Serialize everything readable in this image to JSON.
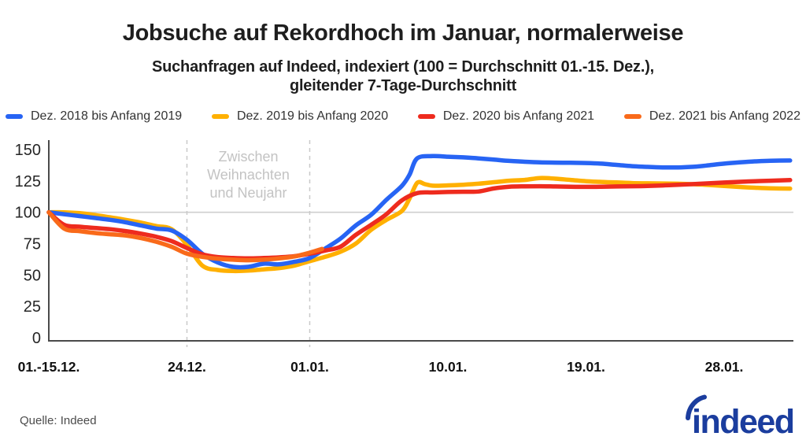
{
  "header": {
    "title": "Jobsuche auf Rekordhoch im Januar, normalerweise",
    "subtitle_line1": "Suchanfragen auf Indeed, indexiert (100 = Durchschnitt 01.-15. Dez.),",
    "subtitle_line2": "gleitender 7-Tage-Durchschnitt"
  },
  "source": {
    "text": "Quelle: Indeed"
  },
  "logo": {
    "text": "indeed",
    "color": "#1b3d9e"
  },
  "colors": {
    "blue": "#2764f4",
    "amber": "#ffb000",
    "red": "#ee2b1e",
    "orange": "#f96a1a",
    "grid": "#cfcfcf",
    "dashed": "#c9c9c9",
    "annotation": "#c3c3c3",
    "axis": "#4a4a4a",
    "tick_text": "#262626",
    "x_tick_text": "#111111"
  },
  "chart_data": {
    "type": "line",
    "title": "Jobsuche auf Rekordhoch im Januar, normalerweise",
    "subtitle": "Suchanfragen auf Indeed, indexiert (100 = Durchschnitt 01.-15. Dez.), gleitender 7-Tage-Durchschnitt",
    "xlabel": "",
    "ylabel": "",
    "legend_position": "top",
    "grid": "reference line at 100 only",
    "y_axis": {
      "ticks": [
        0,
        25,
        50,
        75,
        100,
        125,
        150
      ],
      "range": [
        0,
        157
      ]
    },
    "x_axis": {
      "unit": "days since 15. Dez.",
      "range_days": [
        0,
        48.3
      ],
      "ticks": [
        {
          "day": 0,
          "label": "01.-15.12."
        },
        {
          "day": 9,
          "label": "24.12."
        },
        {
          "day": 17,
          "label": "01.01."
        },
        {
          "day": 26,
          "label": "10.01."
        },
        {
          "day": 35,
          "label": "19.01."
        },
        {
          "day": 44,
          "label": "28.01."
        }
      ]
    },
    "reference_line": 100,
    "annotation": {
      "label_lines": [
        "Zwischen",
        "Weihnachten",
        "und Neujahr"
      ],
      "from_day": 9,
      "to_day": 17
    },
    "series": [
      {
        "name": "Dez. 2018 bis Anfang 2019",
        "color": "#2764f4",
        "z": 1,
        "points": [
          [
            0,
            100
          ],
          [
            1,
            98.5
          ],
          [
            2,
            97
          ],
          [
            3,
            95.5
          ],
          [
            4,
            94
          ],
          [
            5,
            92
          ],
          [
            6,
            89.5
          ],
          [
            7,
            87
          ],
          [
            8,
            85.5
          ],
          [
            9,
            78
          ],
          [
            10,
            67
          ],
          [
            11,
            60
          ],
          [
            12,
            56.5
          ],
          [
            13,
            56.5
          ],
          [
            14,
            59
          ],
          [
            15,
            58.5
          ],
          [
            16,
            60.5
          ],
          [
            17,
            63.5
          ],
          [
            18,
            71
          ],
          [
            19,
            79
          ],
          [
            20,
            89.5
          ],
          [
            21,
            98
          ],
          [
            22,
            110
          ],
          [
            23,
            121
          ],
          [
            23.5,
            130
          ],
          [
            24,
            143
          ],
          [
            25,
            144.8
          ],
          [
            26,
            144.3
          ],
          [
            27,
            143.8
          ],
          [
            28,
            143
          ],
          [
            29,
            142
          ],
          [
            30,
            141
          ],
          [
            31,
            140.3
          ],
          [
            32,
            139.8
          ],
          [
            33,
            139.6
          ],
          [
            34,
            139.5
          ],
          [
            35,
            139.3
          ],
          [
            36,
            138.8
          ],
          [
            37,
            137.8
          ],
          [
            38,
            136.8
          ],
          [
            39,
            136.2
          ],
          [
            40,
            135.8
          ],
          [
            41,
            135.8
          ],
          [
            42,
            136.3
          ],
          [
            43,
            137.5
          ],
          [
            44,
            138.8
          ],
          [
            45,
            139.8
          ],
          [
            46,
            140.6
          ],
          [
            47,
            141.1
          ],
          [
            48.3,
            141.3
          ]
        ]
      },
      {
        "name": "Dez. 2019 bis Anfang 2020",
        "color": "#ffb000",
        "z": 0,
        "points": [
          [
            0,
            100
          ],
          [
            1,
            100
          ],
          [
            2,
            99.3
          ],
          [
            3,
            97.8
          ],
          [
            4,
            96
          ],
          [
            5,
            94
          ],
          [
            6,
            91.8
          ],
          [
            7,
            89
          ],
          [
            8,
            86.5
          ],
          [
            9,
            74
          ],
          [
            10,
            57.5
          ],
          [
            11,
            54
          ],
          [
            12,
            53.2
          ],
          [
            13,
            53.5
          ],
          [
            14,
            54.5
          ],
          [
            15,
            55.5
          ],
          [
            16,
            57.5
          ],
          [
            17,
            61
          ],
          [
            18,
            64.5
          ],
          [
            19,
            68.5
          ],
          [
            20,
            75
          ],
          [
            21,
            86
          ],
          [
            22,
            94
          ],
          [
            23,
            101
          ],
          [
            23.5,
            111
          ],
          [
            24,
            123.5
          ],
          [
            24.5,
            122.5
          ],
          [
            25,
            121.2
          ],
          [
            26,
            121.5
          ],
          [
            27,
            122
          ],
          [
            28,
            122.8
          ],
          [
            29,
            124
          ],
          [
            30,
            125.2
          ],
          [
            31,
            125.8
          ],
          [
            32,
            127.3
          ],
          [
            33,
            126.8
          ],
          [
            34,
            125.8
          ],
          [
            35,
            124.8
          ],
          [
            36,
            124.2
          ],
          [
            37,
            123.8
          ],
          [
            38,
            123.3
          ],
          [
            39,
            123.1
          ],
          [
            40,
            123
          ],
          [
            41,
            122.8
          ],
          [
            42,
            122.4
          ],
          [
            43,
            121.8
          ],
          [
            44,
            121
          ],
          [
            45,
            120.2
          ],
          [
            46,
            119.6
          ],
          [
            47,
            119.1
          ],
          [
            48.3,
            118.9
          ]
        ]
      },
      {
        "name": "Dez. 2020 bis Anfang 2021",
        "color": "#ee2b1e",
        "z": 2,
        "points": [
          [
            0,
            100
          ],
          [
            1,
            90
          ],
          [
            2,
            88.5
          ],
          [
            3,
            87.5
          ],
          [
            4,
            86.5
          ],
          [
            5,
            85
          ],
          [
            6,
            83
          ],
          [
            7,
            80.5
          ],
          [
            8,
            77
          ],
          [
            9,
            71.5
          ],
          [
            10,
            66.5
          ],
          [
            11,
            64.3
          ],
          [
            12,
            63.5
          ],
          [
            13,
            63.2
          ],
          [
            14,
            63.5
          ],
          [
            15,
            64
          ],
          [
            16,
            65
          ],
          [
            17,
            67
          ],
          [
            18,
            69.5
          ],
          [
            19,
            72.5
          ],
          [
            20,
            82
          ],
          [
            21,
            90
          ],
          [
            22,
            98.5
          ],
          [
            23,
            109.5
          ],
          [
            24,
            115.3
          ],
          [
            25,
            115.8
          ],
          [
            26,
            116.2
          ],
          [
            27,
            116.4
          ],
          [
            28,
            116.6
          ],
          [
            29,
            119
          ],
          [
            30,
            120.4
          ],
          [
            31,
            120.7
          ],
          [
            32,
            120.8
          ],
          [
            33,
            120.6
          ],
          [
            34,
            120.4
          ],
          [
            35,
            120.3
          ],
          [
            36,
            120.4
          ],
          [
            37,
            120.6
          ],
          [
            38,
            120.8
          ],
          [
            39,
            121
          ],
          [
            40,
            121.4
          ],
          [
            41,
            121.9
          ],
          [
            42,
            122.5
          ],
          [
            43,
            123.1
          ],
          [
            44,
            123.7
          ],
          [
            45,
            124.3
          ],
          [
            46,
            124.8
          ],
          [
            47,
            125.2
          ],
          [
            48.3,
            125.7
          ]
        ]
      },
      {
        "name": "Dez. 2021 bis Anfang 2022",
        "color": "#f96a1a",
        "z": 3,
        "points": [
          [
            0,
            100
          ],
          [
            1,
            87
          ],
          [
            2,
            85
          ],
          [
            3,
            83.5
          ],
          [
            4,
            82.5
          ],
          [
            5,
            81.5
          ],
          [
            6,
            79.5
          ],
          [
            7,
            76.5
          ],
          [
            8,
            72.5
          ],
          [
            9,
            67
          ],
          [
            10,
            64.5
          ],
          [
            11,
            63
          ],
          [
            12,
            62.2
          ],
          [
            13,
            61.8
          ],
          [
            14,
            62.2
          ],
          [
            15,
            63.2
          ],
          [
            16,
            64.8
          ],
          [
            17,
            67.8
          ],
          [
            17.8,
            70.8
          ]
        ]
      }
    ]
  }
}
